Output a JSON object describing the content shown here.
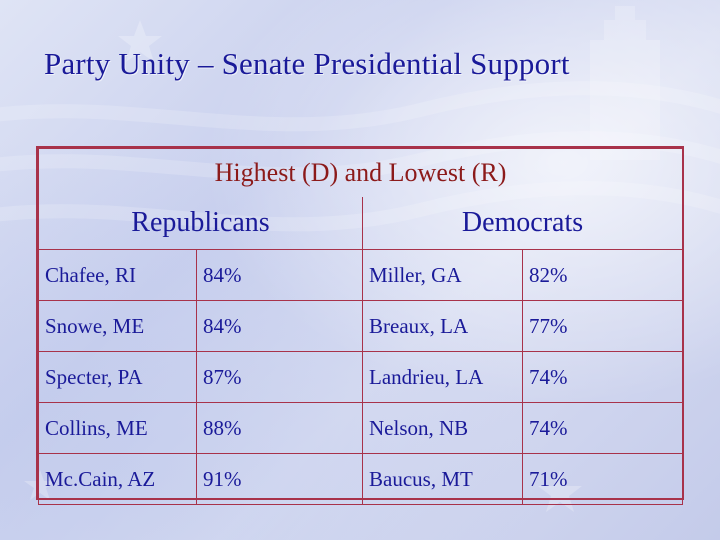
{
  "title": "Party Unity – Senate Presidential Support",
  "table": {
    "caption": "Highest (D) and Lowest (R)",
    "groups": [
      "Republicans",
      "Democrats"
    ],
    "rows": [
      {
        "r_name": "Chafee, RI",
        "r_pct": "84%",
        "d_name": "Miller, GA",
        "d_pct": "82%"
      },
      {
        "r_name": "Snowe, ME",
        "r_pct": "84%",
        "d_name": "Breaux, LA",
        "d_pct": "77%"
      },
      {
        "r_name": "Specter, PA",
        "r_pct": "87%",
        "d_name": "Landrieu, LA",
        "d_pct": "74%"
      },
      {
        "r_name": "Collins, ME",
        "r_pct": "88%",
        "d_name": "Nelson, NB",
        "d_pct": "74%"
      },
      {
        "r_name": "Mc.Cain, AZ",
        "r_pct": "91%",
        "d_name": "Baucus, MT",
        "d_pct": "71%"
      }
    ]
  },
  "colors": {
    "title": "#1a1a99",
    "caption": "#8c1a1a",
    "border": "#a8324a",
    "text": "#1a1a99"
  }
}
